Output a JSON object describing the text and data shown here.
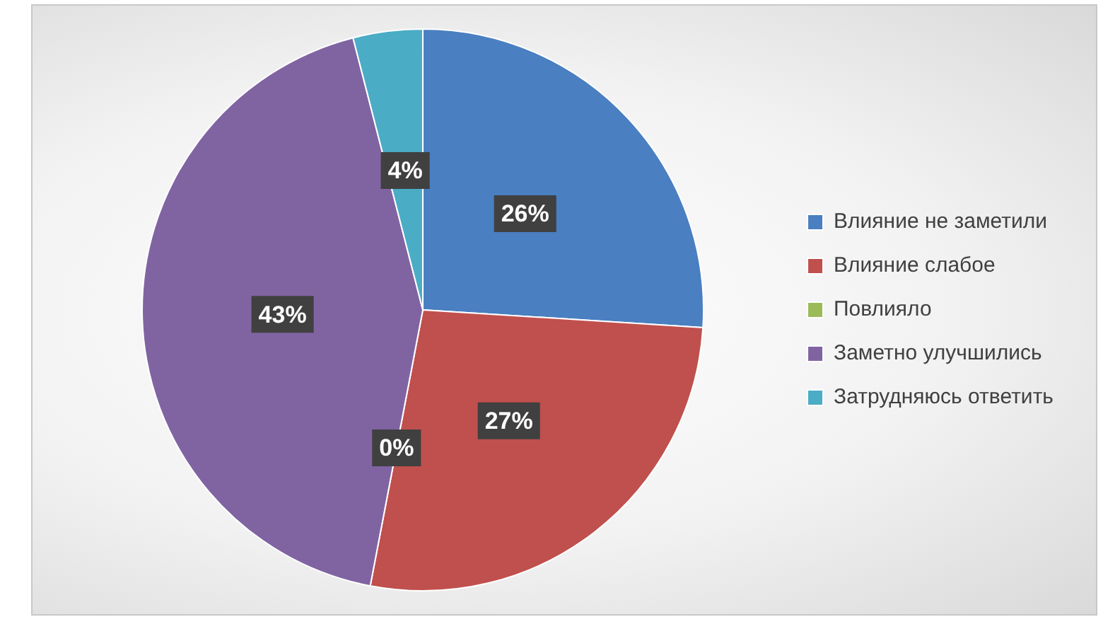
{
  "chart_data": {
    "type": "pie",
    "categories": [
      "Влияние не заметили",
      "Влияние слабое",
      "Повлияло",
      "Заметно улучшились",
      "Затрудняюсь ответить"
    ],
    "values": [
      26,
      27,
      0,
      43,
      4
    ],
    "colors": [
      "#4a7fc1",
      "#c0504d",
      "#9bbb59",
      "#8064a2",
      "#4bacc6"
    ],
    "value_labels": [
      "26%",
      "27%",
      "0%",
      "43%",
      "4%"
    ],
    "legend": "right"
  }
}
